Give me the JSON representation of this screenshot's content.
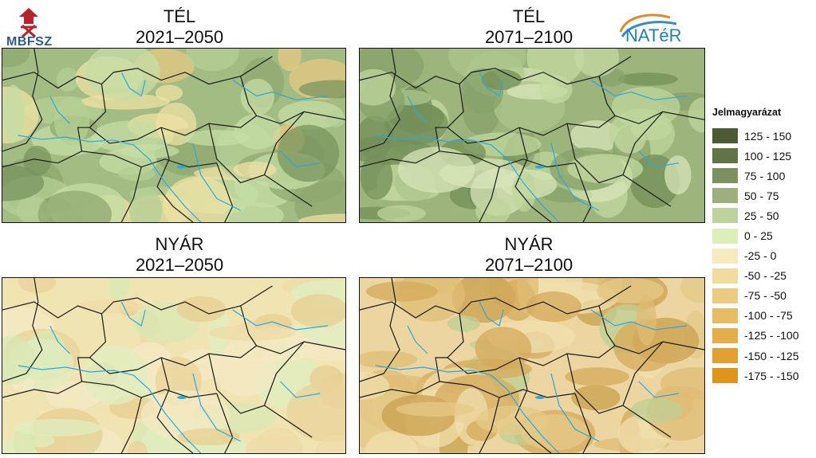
{
  "logos": {
    "left_text": "MBFSZ",
    "right_text": "NATéR"
  },
  "panels": [
    {
      "id": "winter-2021",
      "season": "TÉL",
      "period": "2021–2050",
      "colors": [
        "#a3bc84",
        "#b6cf94",
        "#c6dea6",
        "#8fa870",
        "#7a945d",
        "#efe2a4",
        "#e6c883"
      ]
    },
    {
      "id": "winter-2071",
      "season": "TÉL",
      "period": "2071–2100",
      "colors": [
        "#9db47d",
        "#aec58d",
        "#c4d9a2",
        "#88a16b",
        "#748f59",
        "#bfd69c",
        "#d7e6b8"
      ]
    },
    {
      "id": "summer-2021",
      "season": "NYÁR",
      "period": "2021–2050",
      "colors": [
        "#f1e4b3",
        "#eedca7",
        "#e9d39a",
        "#dfedc0",
        "#d8e8b4",
        "#e8cf91",
        "#f4e9c4"
      ]
    },
    {
      "id": "summer-2071",
      "season": "NYÁR",
      "period": "2071–2100",
      "colors": [
        "#ecd5a1",
        "#e6c987",
        "#dfbc74",
        "#d6a95b",
        "#c9a04f",
        "#f0dfae",
        "#bfcf94"
      ]
    }
  ],
  "legend": {
    "title": "Jelmagyarázat",
    "items": [
      {
        "label": "125 - 150",
        "color": "#4c5b33"
      },
      {
        "label": "100 - 125",
        "color": "#617446"
      },
      {
        "label": "75 - 100",
        "color": "#7c9060"
      },
      {
        "label": "50 - 75",
        "color": "#9caf7d"
      },
      {
        "label": "25 - 50",
        "color": "#bdd29c"
      },
      {
        "label": "0 - 25",
        "color": "#dcefbb"
      },
      {
        "label": "-25 - 0",
        "color": "#f6ebbf"
      },
      {
        "label": "-50 - -25",
        "color": "#f1db9f"
      },
      {
        "label": "-75 - -50",
        "color": "#ebcb82"
      },
      {
        "label": "-100 - -75",
        "color": "#e7bc66"
      },
      {
        "label": "-125 - -100",
        "color": "#e4ad4a"
      },
      {
        "label": "-150 - -125",
        "color": "#e2a032"
      },
      {
        "label": "-175 - -150",
        "color": "#e0941c"
      }
    ]
  }
}
